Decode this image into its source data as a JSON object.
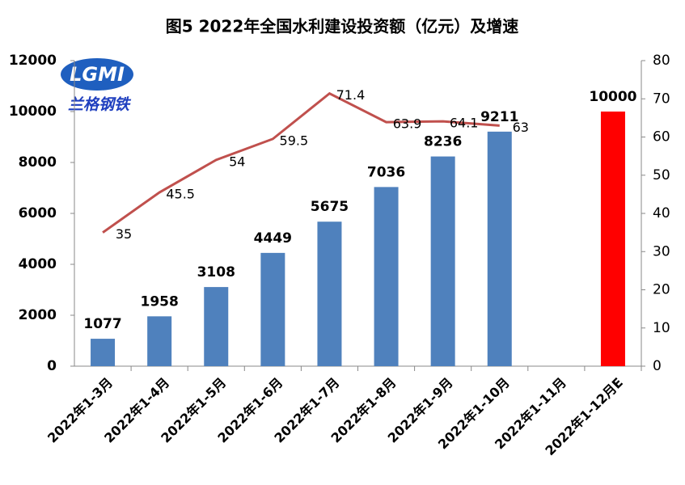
{
  "chart_data": {
    "type": "bar_line",
    "title": "图5 2022年全国水利建设投资额（亿元）及增速",
    "logo": {
      "text": "LGMI",
      "subtitle": "兰格钢铁"
    },
    "categories": [
      "2022年1-3月",
      "2022年1-4月",
      "2022年1-5月",
      "2022年1-6月",
      "2022年1-7月",
      "2022年1-8月",
      "2022年1-9月",
      "2022年1-10月",
      "2022年1-11月",
      "2022年1-12月E"
    ],
    "series": [
      {
        "type": "bar",
        "values": [
          1077,
          1958,
          3108,
          4449,
          5675,
          7036,
          8236,
          9211,
          null,
          10000
        ],
        "colors": [
          "#4f81bd",
          "#4f81bd",
          "#4f81bd",
          "#4f81bd",
          "#4f81bd",
          "#4f81bd",
          "#4f81bd",
          "#4f81bd",
          "#4f81bd",
          "#ff0000"
        ]
      },
      {
        "type": "line",
        "axis": "y2",
        "color": "#c0504d",
        "values": [
          35,
          45.5,
          54,
          59.5,
          71.4,
          63.9,
          64.1,
          63,
          null,
          null
        ]
      }
    ],
    "ylim": [
      0,
      12000
    ],
    "yticks": [
      0,
      2000,
      4000,
      6000,
      8000,
      10000,
      12000
    ],
    "y2lim": [
      0,
      80
    ],
    "y2ticks": [
      0,
      10,
      20,
      30,
      40,
      50,
      60,
      70,
      80
    ],
    "grid": false
  }
}
